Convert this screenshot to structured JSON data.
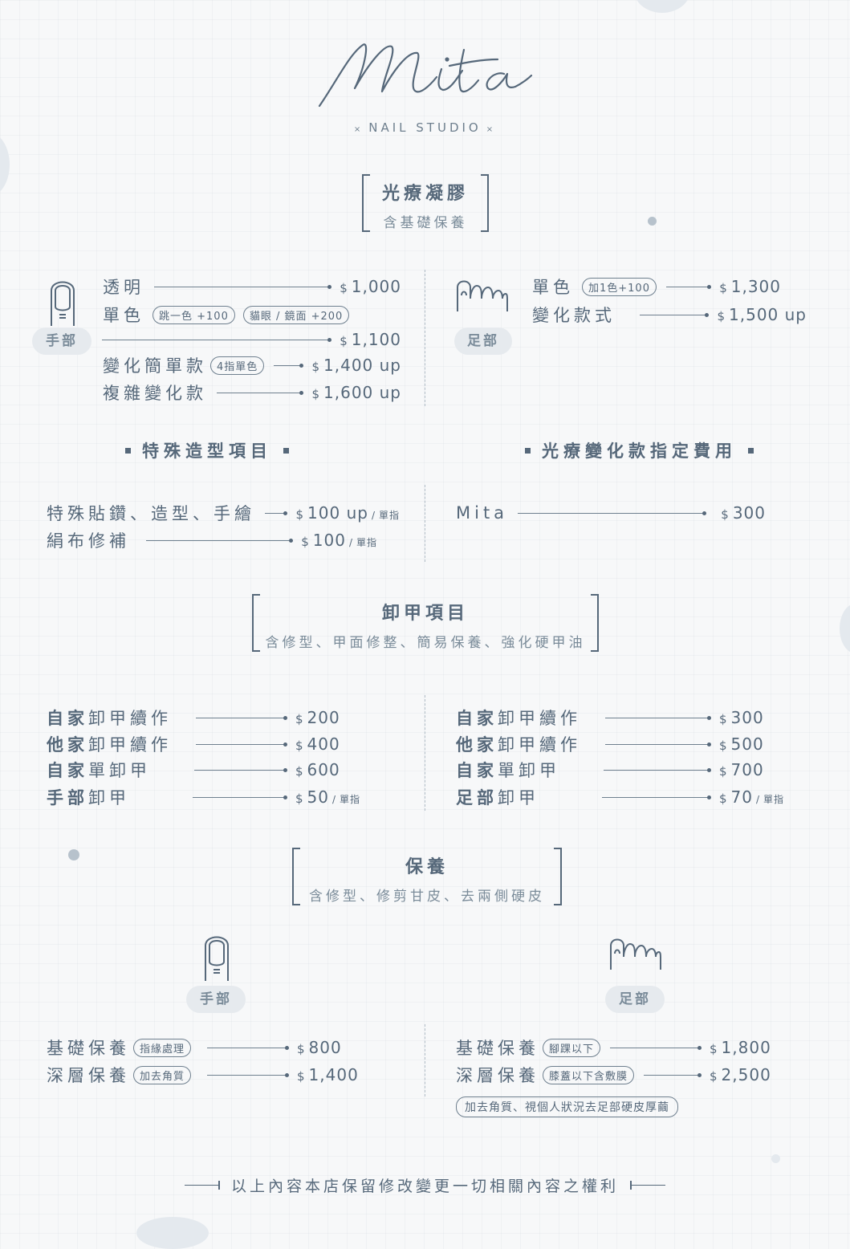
{
  "logo": {
    "script": "Mita",
    "studio": "NAIL STUDIO",
    "marker": "×"
  },
  "gel": {
    "title": "光療凝膠",
    "subtitle": "含基礎保養",
    "hand": {
      "badge": "手部",
      "items": [
        {
          "label": "透明",
          "price": "1,000"
        },
        {
          "label": "單色",
          "pills": [
            "跳一色 +100",
            "貓眼 / 鏡面 +200"
          ],
          "price": "1,100"
        },
        {
          "label": "變化簡單款",
          "pills": [
            "4指單色"
          ],
          "price": "1,400 up"
        },
        {
          "label": "複雜變化款",
          "price": "1,600 up"
        }
      ]
    },
    "foot": {
      "badge": "足部",
      "items": [
        {
          "label": "單色",
          "pills": [
            "加1色+100"
          ],
          "price": "1,300"
        },
        {
          "label": "變化款式",
          "price": "1,500 up"
        }
      ]
    }
  },
  "special": {
    "heading": "特殊造型項目",
    "items": [
      {
        "label": "特殊貼鑽、造型、手繪",
        "price": "100 up",
        "unit": "單指"
      },
      {
        "label": "絹布修補",
        "price": "100",
        "unit": "單指"
      }
    ]
  },
  "designate": {
    "heading": "光療變化款指定費用",
    "items": [
      {
        "label": "Mita",
        "price": "300"
      }
    ]
  },
  "removal": {
    "title": "卸甲項目",
    "subtitle": "含修型、甲面修整、簡易保養、強化硬甲油",
    "hand": [
      {
        "bold": "自家",
        "rest": "卸甲續作",
        "price": "200"
      },
      {
        "bold": "他家",
        "rest": "卸甲續作",
        "price": "400"
      },
      {
        "bold": "自家",
        "rest": "單卸甲",
        "price": "600"
      },
      {
        "bold": "手部",
        "rest": "卸甲",
        "price": "50",
        "unit": "單指"
      }
    ],
    "foot": [
      {
        "bold": "自家",
        "rest": "卸甲續作",
        "price": "300"
      },
      {
        "bold": "他家",
        "rest": "卸甲續作",
        "price": "500"
      },
      {
        "bold": "自家",
        "rest": "單卸甲",
        "price": "700"
      },
      {
        "bold": "足部",
        "rest": "卸甲",
        "price": "70",
        "unit": "單指"
      }
    ]
  },
  "care": {
    "title": "保養",
    "subtitle": "含修型、修剪甘皮、去兩側硬皮",
    "hand": {
      "badge": "手部",
      "items": [
        {
          "label": "基礎保養",
          "pills": [
            "指緣處理"
          ],
          "price": "800"
        },
        {
          "label": "深層保養",
          "pills": [
            "加去角質"
          ],
          "price": "1,400"
        }
      ]
    },
    "foot": {
      "badge": "足部",
      "items": [
        {
          "label": "基礎保養",
          "pills": [
            "腳踝以下"
          ],
          "price": "1,800"
        },
        {
          "label": "深層保養",
          "pills": [
            "膝蓋以下含敷膜"
          ],
          "price": "2,500"
        }
      ],
      "note": "加去角質、視個人狀況去足部硬皮厚繭"
    }
  },
  "currency": "$",
  "footer": "以上內容本店保留修改變更一切相關內容之權利",
  "colors": {
    "text": "#56687a",
    "badge_bg": "#e6eaee",
    "background": "#f7f8f9"
  },
  "icons": [
    "fingernail-icon",
    "toes-icon"
  ]
}
